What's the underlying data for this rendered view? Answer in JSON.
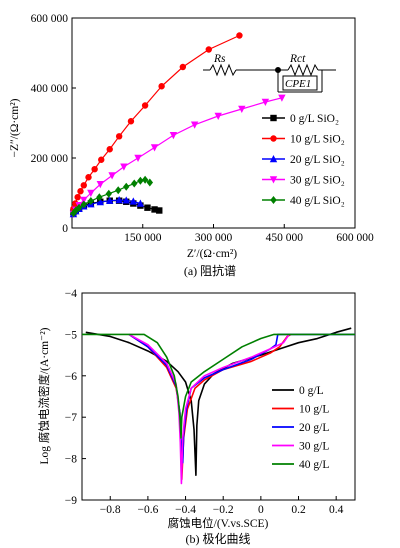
{
  "chart_data": [
    {
      "type": "scatter",
      "ylabel": "−Z″/(Ω·cm²)",
      "xlabel": "Z′/(Ω·cm²)",
      "caption": "(a) 阻抗谱",
      "xlim": [
        0,
        600000
      ],
      "ylim": [
        0,
        600000
      ],
      "x_ticks": [
        150000,
        300000,
        450000,
        600000
      ],
      "x_tick_labels": [
        "150 000",
        "300 000",
        "450 000",
        "600 000"
      ],
      "y_ticks": [
        0,
        200000,
        400000,
        600000
      ],
      "y_tick_labels": [
        "0",
        "200 000",
        "400 000",
        "600 000"
      ],
      "legend_position": "right",
      "circuit": {
        "r1": "Rs",
        "r2": "Rct",
        "cpe": "CPE1"
      },
      "series": [
        {
          "name": "0 g/L SiO₂",
          "color": "#000000",
          "marker": "square",
          "points": [
            [
              3000,
              45000
            ],
            [
              8000,
              52000
            ],
            [
              15000,
              58000
            ],
            [
              25000,
              64000
            ],
            [
              40000,
              70000
            ],
            [
              60000,
              75000
            ],
            [
              80000,
              78000
            ],
            [
              100000,
              78000
            ],
            [
              115000,
              75000
            ],
            [
              130000,
              70000
            ],
            [
              145000,
              64000
            ],
            [
              160000,
              58000
            ],
            [
              175000,
              53000
            ],
            [
              185000,
              50000
            ]
          ]
        },
        {
          "name": "10 g/L SiO₂",
          "color": "#ff0000",
          "marker": "circle",
          "points": [
            [
              3000,
              55000
            ],
            [
              7000,
              70000
            ],
            [
              12000,
              88000
            ],
            [
              18000,
              105000
            ],
            [
              25000,
              122000
            ],
            [
              35000,
              145000
            ],
            [
              48000,
              168000
            ],
            [
              62000,
              195000
            ],
            [
              80000,
              225000
            ],
            [
              100000,
              262000
            ],
            [
              125000,
              305000
            ],
            [
              155000,
              350000
            ],
            [
              190000,
              405000
            ],
            [
              235000,
              460000
            ],
            [
              290000,
              510000
            ],
            [
              355000,
              550000
            ]
          ]
        },
        {
          "name": "20 g/L SiO₂",
          "color": "#0000ff",
          "marker": "triangle-up",
          "points": [
            [
              3000,
              40000
            ],
            [
              8000,
              48000
            ],
            [
              15000,
              55000
            ],
            [
              25000,
              62000
            ],
            [
              40000,
              68000
            ],
            [
              60000,
              74000
            ],
            [
              80000,
              78000
            ],
            [
              100000,
              80000
            ],
            [
              115000,
              79000
            ],
            [
              130000,
              76000
            ],
            [
              145000,
              70000
            ]
          ]
        },
        {
          "name": "30 g/L SiO₂",
          "color": "#ff00ff",
          "marker": "triangle-down",
          "points": [
            [
              3000,
              40000
            ],
            [
              8000,
              52000
            ],
            [
              15000,
              65000
            ],
            [
              25000,
              80000
            ],
            [
              40000,
              100000
            ],
            [
              60000,
              125000
            ],
            [
              85000,
              150000
            ],
            [
              110000,
              175000
            ],
            [
              140000,
              200000
            ],
            [
              175000,
              230000
            ],
            [
              215000,
              265000
            ],
            [
              260000,
              295000
            ],
            [
              310000,
              320000
            ],
            [
              360000,
              340000
            ],
            [
              410000,
              360000
            ],
            [
              445000,
              372000
            ]
          ]
        },
        {
          "name": "40 g/L SiO₂",
          "color": "#008000",
          "marker": "diamond",
          "points": [
            [
              3000,
              42000
            ],
            [
              8000,
              50000
            ],
            [
              15000,
              58000
            ],
            [
              25000,
              67000
            ],
            [
              40000,
              77000
            ],
            [
              58000,
              88000
            ],
            [
              78000,
              98000
            ],
            [
              98000,
              108000
            ],
            [
              115000,
              118000
            ],
            [
              132000,
              127000
            ],
            [
              145000,
              135000
            ],
            [
              155000,
              138000
            ],
            [
              165000,
              130000
            ]
          ]
        }
      ]
    },
    {
      "type": "line",
      "ylabel": "Log 腐蚀电流密度/(A·cm⁻²)",
      "xlabel": "腐蚀电位/(V.vs.SCE)",
      "caption": "(b) 极化曲线",
      "xlim": [
        -0.95,
        0.5
      ],
      "ylim": [
        -9,
        -4
      ],
      "x_ticks": [
        -0.8,
        -0.6,
        -0.4,
        -0.2,
        0,
        0.2,
        0.4
      ],
      "x_tick_labels": [
        "−0.8",
        "−0.6",
        "−0.4",
        "−0.2",
        "0",
        "0.2",
        "0.4"
      ],
      "y_ticks": [
        -4,
        -5,
        -6,
        -7,
        -8,
        -9
      ],
      "y_tick_labels": [
        "−4",
        "−5",
        "−6",
        "−7",
        "−8",
        "−9"
      ],
      "legend_position": "right",
      "series": [
        {
          "name": "0 g/L",
          "color": "#000000",
          "points": [
            [
              -0.93,
              -4.95
            ],
            [
              -0.8,
              -5.05
            ],
            [
              -0.7,
              -5.2
            ],
            [
              -0.6,
              -5.4
            ],
            [
              -0.5,
              -5.65
            ],
            [
              -0.44,
              -5.9
            ],
            [
              -0.4,
              -6.15
            ],
            [
              -0.37,
              -6.6
            ],
            [
              -0.355,
              -7.3
            ],
            [
              -0.345,
              -8.4
            ],
            [
              -0.34,
              -7.2
            ],
            [
              -0.33,
              -6.6
            ],
            [
              -0.3,
              -6.2
            ],
            [
              -0.25,
              -5.95
            ],
            [
              -0.15,
              -5.7
            ],
            [
              0,
              -5.5
            ],
            [
              0.1,
              -5.35
            ],
            [
              0.2,
              -5.2
            ],
            [
              0.3,
              -5.1
            ],
            [
              0.4,
              -4.95
            ],
            [
              0.48,
              -4.85
            ]
          ]
        },
        {
          "name": "10 g/L",
          "color": "#ff0000",
          "points": [
            [
              -0.7,
              -5.0
            ],
            [
              -0.6,
              -5.3
            ],
            [
              -0.5,
              -5.8
            ],
            [
              -0.45,
              -6.3
            ],
            [
              -0.43,
              -6.9
            ],
            [
              -0.425,
              -7.6
            ],
            [
              -0.42,
              -8.5
            ],
            [
              -0.41,
              -7.5
            ],
            [
              -0.39,
              -6.8
            ],
            [
              -0.35,
              -6.3
            ],
            [
              -0.3,
              -6.1
            ],
            [
              -0.2,
              -5.85
            ],
            [
              -0.05,
              -5.65
            ],
            [
              0.05,
              -5.45
            ],
            [
              0.1,
              -5.3
            ],
            [
              0.14,
              -5.05
            ],
            [
              0.16,
              -5.0
            ]
          ]
        },
        {
          "name": "20 g/L",
          "color": "#0000ff",
          "points": [
            [
              -0.7,
              -5.0
            ],
            [
              -0.6,
              -5.3
            ],
            [
              -0.5,
              -5.75
            ],
            [
              -0.45,
              -6.25
            ],
            [
              -0.43,
              -6.9
            ],
            [
              -0.425,
              -7.5
            ],
            [
              -0.415,
              -8.1
            ],
            [
              -0.41,
              -7.4
            ],
            [
              -0.395,
              -6.8
            ],
            [
              -0.37,
              -6.3
            ],
            [
              -0.3,
              -6.05
            ],
            [
              -0.2,
              -5.85
            ],
            [
              -0.05,
              -5.6
            ],
            [
              0.05,
              -5.35
            ],
            [
              0.08,
              -5.25
            ],
            [
              0.09,
              -5.0
            ],
            [
              0.5,
              -5.0
            ]
          ]
        },
        {
          "name": "30 g/L",
          "color": "#ff00ff",
          "points": [
            [
              -0.7,
              -5.0
            ],
            [
              -0.6,
              -5.25
            ],
            [
              -0.5,
              -5.7
            ],
            [
              -0.45,
              -6.2
            ],
            [
              -0.435,
              -6.9
            ],
            [
              -0.428,
              -7.6
            ],
            [
              -0.422,
              -8.6
            ],
            [
              -0.415,
              -7.5
            ],
            [
              -0.4,
              -6.8
            ],
            [
              -0.37,
              -6.3
            ],
            [
              -0.3,
              -6.0
            ],
            [
              -0.2,
              -5.8
            ],
            [
              -0.05,
              -5.55
            ],
            [
              0.05,
              -5.35
            ],
            [
              0.12,
              -5.2
            ],
            [
              0.15,
              -5.0
            ]
          ]
        },
        {
          "name": "40 g/L",
          "color": "#008000",
          "points": [
            [
              -0.95,
              -5.0
            ],
            [
              -0.62,
              -5.0
            ],
            [
              -0.55,
              -5.2
            ],
            [
              -0.5,
              -5.55
            ],
            [
              -0.46,
              -6.0
            ],
            [
              -0.44,
              -6.5
            ],
            [
              -0.43,
              -7.0
            ],
            [
              -0.424,
              -7.5
            ],
            [
              -0.42,
              -7.0
            ],
            [
              -0.4,
              -6.5
            ],
            [
              -0.37,
              -6.15
            ],
            [
              -0.3,
              -5.9
            ],
            [
              -0.2,
              -5.6
            ],
            [
              -0.1,
              -5.3
            ],
            [
              0.0,
              -5.1
            ],
            [
              0.07,
              -5.0
            ],
            [
              0.5,
              -5.0
            ]
          ]
        }
      ]
    }
  ]
}
